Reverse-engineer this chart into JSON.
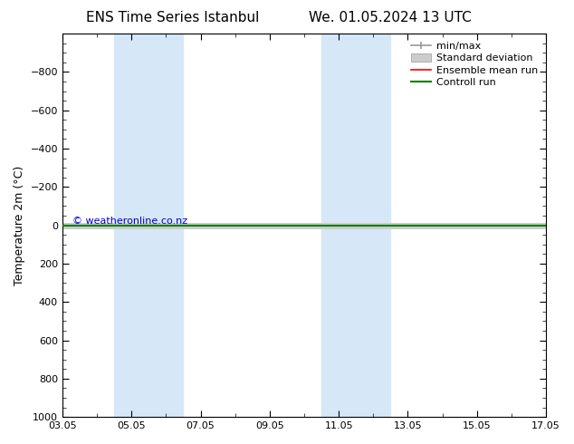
{
  "title_left": "ENS Time Series Istanbul",
  "title_right": "We. 01.05.2024 13 UTC",
  "ylabel": "Temperature 2m (°C)",
  "watermark": "© weatheronline.co.nz",
  "xlim_dates": [
    "03.05",
    "05.05",
    "07.05",
    "09.05",
    "11.05",
    "13.05",
    "15.05",
    "17.05"
  ],
  "xtick_positions": [
    0,
    2,
    4,
    6,
    8,
    10,
    12,
    14
  ],
  "ylim_top": -1000,
  "ylim_bottom": 1000,
  "yticks": [
    -800,
    -600,
    -400,
    -200,
    0,
    200,
    400,
    600,
    800,
    1000
  ],
  "background_color": "#ffffff",
  "shaded_bands": [
    {
      "x_start": 1.5,
      "x_end": 3.5
    },
    {
      "x_start": 7.5,
      "x_end": 9.5
    }
  ],
  "shaded_color": "#d6e8f7",
  "line_y": 0,
  "legend_entries": [
    {
      "label": "min/max",
      "color": "#999999",
      "lw": 1.2
    },
    {
      "label": "Standard deviation",
      "color": "#cccccc",
      "lw": 5
    },
    {
      "label": "Ensemble mean run",
      "color": "#ff0000",
      "lw": 1.2
    },
    {
      "label": "Controll run",
      "color": "#008000",
      "lw": 1.5
    }
  ],
  "fig_width": 6.34,
  "fig_height": 4.9,
  "dpi": 100,
  "title_fontsize": 11,
  "tick_fontsize": 8,
  "ylabel_fontsize": 9,
  "watermark_color": "#0000cc",
  "watermark_fontsize": 8,
  "legend_fontsize": 8
}
